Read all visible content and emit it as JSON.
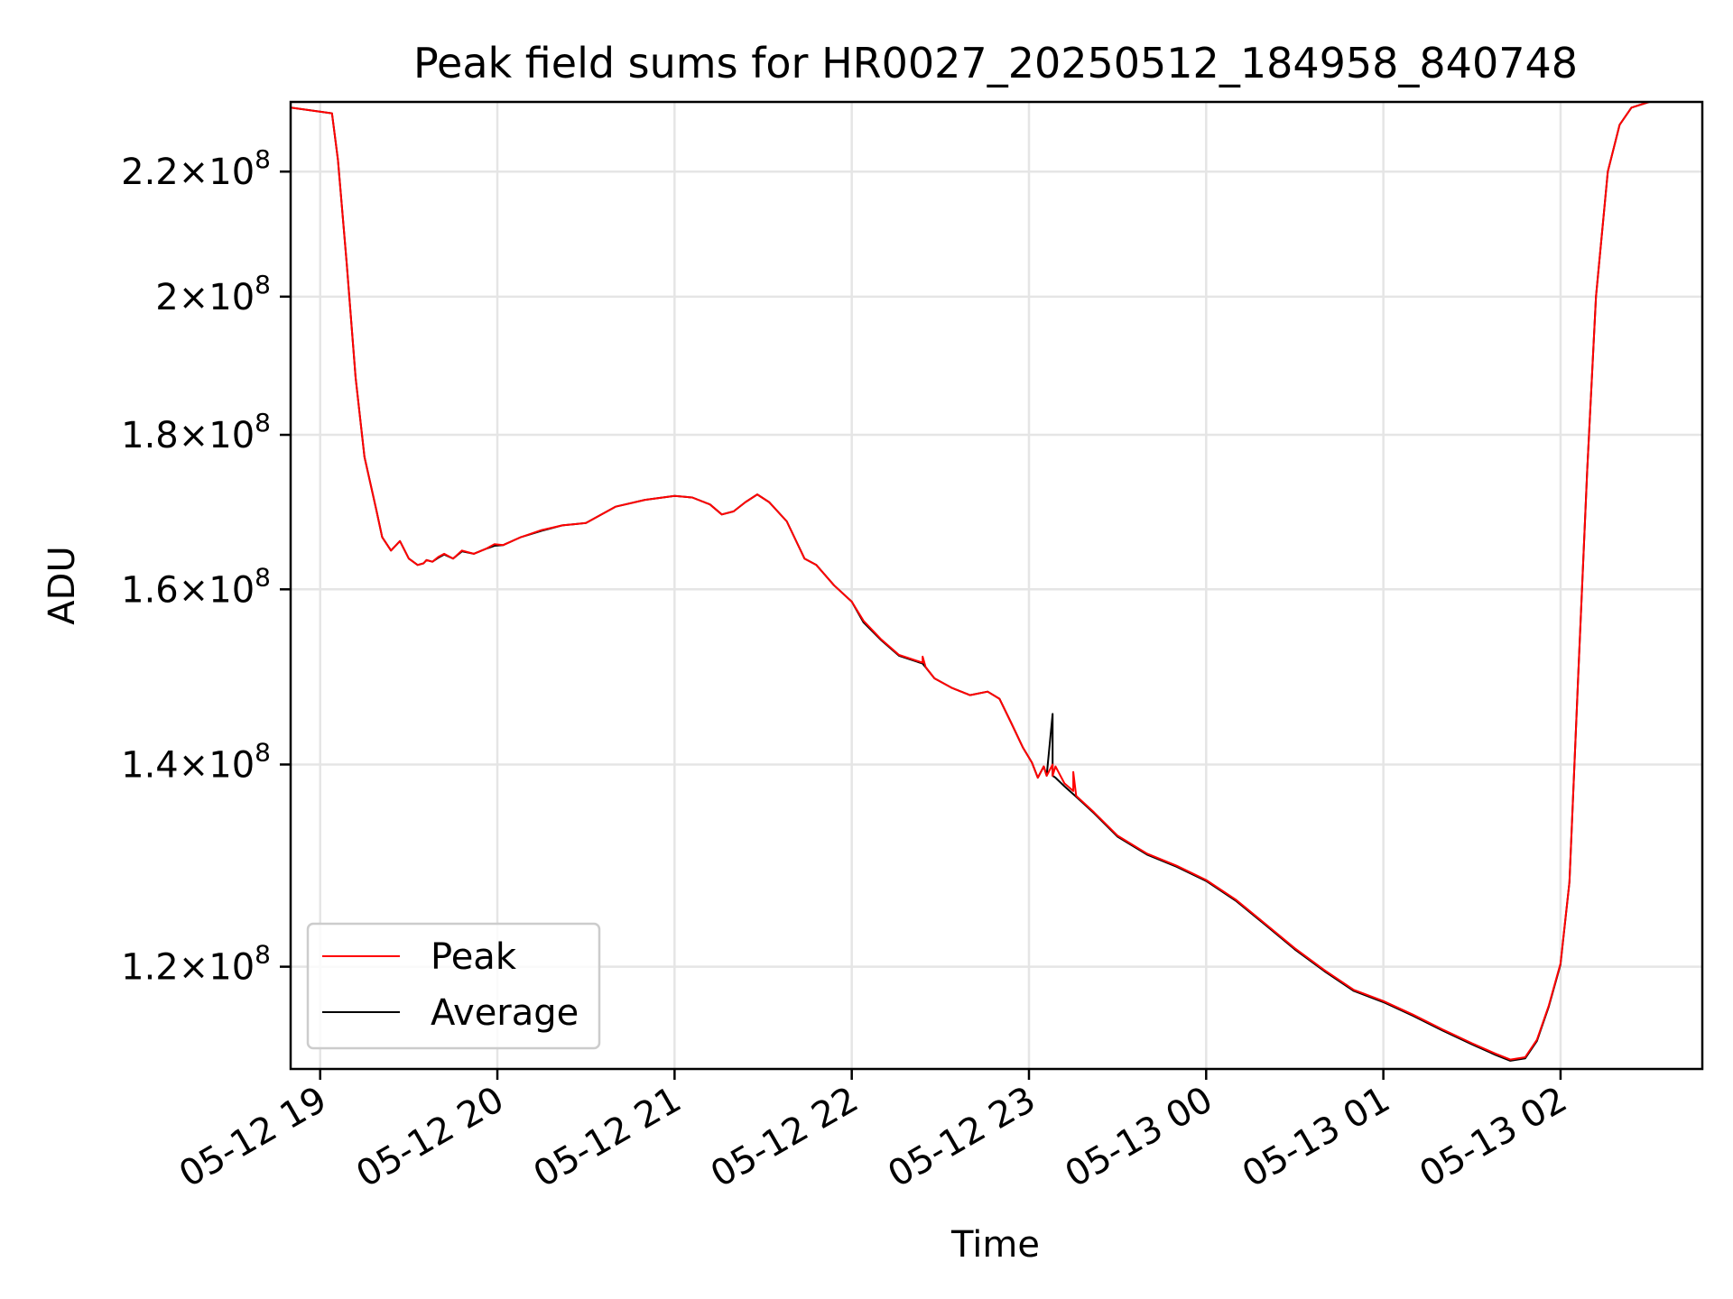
{
  "chart_data": {
    "type": "line",
    "title": "Peak field sums for HR0027_20250512_184958_840748",
    "xlabel": "Time",
    "ylabel": "ADU",
    "y_scale": "log",
    "xlim": [
      "2025-05-12 18:50",
      "2025-05-13 02:48"
    ],
    "ylim": [
      111000000,
      232000000
    ],
    "x_ticks": [
      {
        "value": "2025-05-12 19:00",
        "label": "05-12 19"
      },
      {
        "value": "2025-05-12 20:00",
        "label": "05-12 20"
      },
      {
        "value": "2025-05-12 21:00",
        "label": "05-12 21"
      },
      {
        "value": "2025-05-12 22:00",
        "label": "05-12 22"
      },
      {
        "value": "2025-05-12 23:00",
        "label": "05-12 23"
      },
      {
        "value": "2025-05-13 00:00",
        "label": "05-13 00"
      },
      {
        "value": "2025-05-13 01:00",
        "label": "05-13 01"
      },
      {
        "value": "2025-05-13 02:00",
        "label": "05-13 02"
      }
    ],
    "y_ticks": [
      {
        "value": 120000000,
        "mantissa": "1.2",
        "base": "10",
        "exp": "8"
      },
      {
        "value": 140000000,
        "mantissa": "1.4",
        "base": "10",
        "exp": "8"
      },
      {
        "value": 160000000,
        "mantissa": "1.6",
        "base": "10",
        "exp": "8"
      },
      {
        "value": 180000000,
        "mantissa": "1.8",
        "base": "10",
        "exp": "8"
      },
      {
        "value": 200000000,
        "mantissa": "2",
        "base": "10",
        "exp": "8"
      },
      {
        "value": 220000000,
        "mantissa": "2.2",
        "base": "10",
        "exp": "8"
      }
    ],
    "grid": true,
    "legend_position": "bottom-left",
    "series": [
      {
        "name": "Peak",
        "color": "#ff0000",
        "x": [
          "2025-05-12 18:50",
          "2025-05-12 19:04",
          "2025-05-12 19:06",
          "2025-05-12 19:09",
          "2025-05-12 19:12",
          "2025-05-12 19:15",
          "2025-05-12 19:19",
          "2025-05-12 19:21",
          "2025-05-12 19:24",
          "2025-05-12 19:27",
          "2025-05-12 19:30",
          "2025-05-12 19:33",
          "2025-05-12 19:35",
          "2025-05-12 19:36",
          "2025-05-12 19:38",
          "2025-05-12 19:40",
          "2025-05-12 19:42",
          "2025-05-12 19:45",
          "2025-05-12 19:48",
          "2025-05-12 19:52",
          "2025-05-12 19:56",
          "2025-05-12 19:59",
          "2025-05-12 20:02",
          "2025-05-12 20:08",
          "2025-05-12 20:15",
          "2025-05-12 20:22",
          "2025-05-12 20:30",
          "2025-05-12 20:40",
          "2025-05-12 20:50",
          "2025-05-12 21:00",
          "2025-05-12 21:06",
          "2025-05-12 21:12",
          "2025-05-12 21:16",
          "2025-05-12 21:20",
          "2025-05-12 21:24",
          "2025-05-12 21:28",
          "2025-05-12 21:32",
          "2025-05-12 21:38",
          "2025-05-12 21:44",
          "2025-05-12 21:48",
          "2025-05-12 21:54",
          "2025-05-12 22:00",
          "2025-05-12 22:04",
          "2025-05-12 22:10",
          "2025-05-12 22:16",
          "2025-05-12 22:24",
          "2025-05-12 22:24",
          "2025-05-12 22:25",
          "2025-05-12 22:28",
          "2025-05-12 22:34",
          "2025-05-12 22:40",
          "2025-05-12 22:46",
          "2025-05-12 22:50",
          "2025-05-12 22:54",
          "2025-05-12 22:58",
          "2025-05-12 23:01",
          "2025-05-12 23:03",
          "2025-05-12 23:05",
          "2025-05-12 23:06",
          "2025-05-12 23:08",
          "2025-05-12 23:08",
          "2025-05-12 23:09",
          "2025-05-12 23:12",
          "2025-05-12 23:15",
          "2025-05-12 23:15",
          "2025-05-12 23:16",
          "2025-05-12 23:22",
          "2025-05-12 23:30",
          "2025-05-12 23:40",
          "2025-05-12 23:50",
          "2025-05-13 00:00",
          "2025-05-13 00:10",
          "2025-05-13 00:20",
          "2025-05-13 00:30",
          "2025-05-13 00:40",
          "2025-05-13 00:50",
          "2025-05-13 01:00",
          "2025-05-13 01:10",
          "2025-05-13 01:20",
          "2025-05-13 01:30",
          "2025-05-13 01:38",
          "2025-05-13 01:43",
          "2025-05-13 01:48",
          "2025-05-13 01:52",
          "2025-05-13 01:56",
          "2025-05-13 02:00",
          "2025-05-13 02:03",
          "2025-05-13 02:06",
          "2025-05-13 02:09",
          "2025-05-13 02:12",
          "2025-05-13 02:16",
          "2025-05-13 02:20",
          "2025-05-13 02:24",
          "2025-05-13 02:30",
          "2025-05-13 02:48"
        ],
        "values": [
          231000000,
          230000000,
          222000000,
          205000000,
          188000000,
          177000000,
          170000000,
          166500000,
          164800000,
          166000000,
          163800000,
          163000000,
          163200000,
          163600000,
          163400000,
          164000000,
          164400000,
          163800000,
          164800000,
          164400000,
          165000000,
          165600000,
          165500000,
          166500000,
          167400000,
          168000000,
          168300000,
          170400000,
          171300000,
          171800000,
          171600000,
          170700000,
          169400000,
          169800000,
          171000000,
          172000000,
          171000000,
          168500000,
          163800000,
          163000000,
          160500000,
          158500000,
          156200000,
          154000000,
          152200000,
          151300000,
          152000000,
          150800000,
          149500000,
          148400000,
          147600000,
          148000000,
          147200000,
          144500000,
          141800000,
          140200000,
          138600000,
          139800000,
          138800000,
          140000000,
          138800000,
          139800000,
          138000000,
          137200000,
          139200000,
          136700000,
          135000000,
          132600000,
          130800000,
          129600000,
          128200000,
          126300000,
          124000000,
          121700000,
          119700000,
          117900000,
          116900000,
          115700000,
          114400000,
          113200000,
          112300000,
          111800000,
          112000000,
          113500000,
          116500000,
          120300000,
          128000000,
          150000000,
          175000000,
          200000000,
          220000000,
          228000000,
          231000000,
          232000000,
          232000000
        ]
      },
      {
        "name": "Average",
        "color": "#000000",
        "x": [
          "2025-05-12 18:50",
          "2025-05-12 19:04",
          "2025-05-12 19:06",
          "2025-05-12 19:09",
          "2025-05-12 19:12",
          "2025-05-12 19:15",
          "2025-05-12 19:19",
          "2025-05-12 19:21",
          "2025-05-12 19:24",
          "2025-05-12 19:27",
          "2025-05-12 19:30",
          "2025-05-12 19:33",
          "2025-05-12 19:35",
          "2025-05-12 19:36",
          "2025-05-12 19:38",
          "2025-05-12 19:40",
          "2025-05-12 19:42",
          "2025-05-12 19:45",
          "2025-05-12 19:48",
          "2025-05-12 19:52",
          "2025-05-12 19:56",
          "2025-05-12 19:59",
          "2025-05-12 20:02",
          "2025-05-12 20:08",
          "2025-05-12 20:15",
          "2025-05-12 20:22",
          "2025-05-12 20:30",
          "2025-05-12 20:40",
          "2025-05-12 20:50",
          "2025-05-12 21:00",
          "2025-05-12 21:06",
          "2025-05-12 21:12",
          "2025-05-12 21:16",
          "2025-05-12 21:20",
          "2025-05-12 21:24",
          "2025-05-12 21:28",
          "2025-05-12 21:32",
          "2025-05-12 21:38",
          "2025-05-12 21:44",
          "2025-05-12 21:48",
          "2025-05-12 21:54",
          "2025-05-12 22:00",
          "2025-05-12 22:04",
          "2025-05-12 22:10",
          "2025-05-12 22:16",
          "2025-05-12 22:24",
          "2025-05-12 22:28",
          "2025-05-12 22:34",
          "2025-05-12 22:40",
          "2025-05-12 22:46",
          "2025-05-12 22:50",
          "2025-05-12 22:54",
          "2025-05-12 22:58",
          "2025-05-12 23:01",
          "2025-05-12 23:03",
          "2025-05-12 23:05",
          "2025-05-12 23:06",
          "2025-05-12 23:08",
          "2025-05-12 23:08",
          "2025-05-12 23:09",
          "2025-05-12 23:12",
          "2025-05-12 23:16",
          "2025-05-12 23:22",
          "2025-05-12 23:30",
          "2025-05-12 23:40",
          "2025-05-12 23:50",
          "2025-05-13 00:00",
          "2025-05-13 00:10",
          "2025-05-13 00:20",
          "2025-05-13 00:30",
          "2025-05-13 00:40",
          "2025-05-13 00:50",
          "2025-05-13 01:00",
          "2025-05-13 01:10",
          "2025-05-13 01:20",
          "2025-05-13 01:30",
          "2025-05-13 01:38",
          "2025-05-13 01:43",
          "2025-05-13 01:48",
          "2025-05-13 01:52",
          "2025-05-13 01:56",
          "2025-05-13 02:00",
          "2025-05-13 02:03",
          "2025-05-13 02:06",
          "2025-05-13 02:09",
          "2025-05-13 02:12",
          "2025-05-13 02:16",
          "2025-05-13 02:20",
          "2025-05-13 02:24",
          "2025-05-13 02:30",
          "2025-05-13 02:48"
        ],
        "values": [
          231000000,
          230000000,
          222000000,
          205000000,
          188000000,
          177000000,
          170000000,
          166500000,
          164800000,
          166000000,
          163800000,
          163000000,
          163200000,
          163600000,
          163400000,
          163900000,
          164300000,
          163800000,
          164700000,
          164400000,
          165000000,
          165400000,
          165500000,
          166500000,
          167300000,
          168000000,
          168300000,
          170400000,
          171300000,
          171800000,
          171600000,
          170700000,
          169400000,
          169800000,
          171000000,
          172000000,
          171000000,
          168500000,
          163800000,
          163000000,
          160500000,
          158500000,
          156000000,
          153900000,
          152100000,
          151200000,
          149500000,
          148400000,
          147600000,
          148000000,
          147200000,
          144500000,
          141800000,
          140200000,
          138600000,
          139800000,
          138800000,
          145500000,
          138800000,
          138600000,
          137700000,
          136600000,
          134900000,
          132500000,
          130700000,
          129500000,
          128100000,
          126200000,
          123900000,
          121600000,
          119600000,
          117800000,
          116800000,
          115600000,
          114300000,
          113100000,
          112200000,
          111700000,
          111900000,
          113400000,
          116400000,
          120200000,
          128000000,
          150000000,
          175000000,
          200000000,
          220000000,
          228000000,
          231000000,
          232000000,
          232000000
        ]
      }
    ]
  }
}
